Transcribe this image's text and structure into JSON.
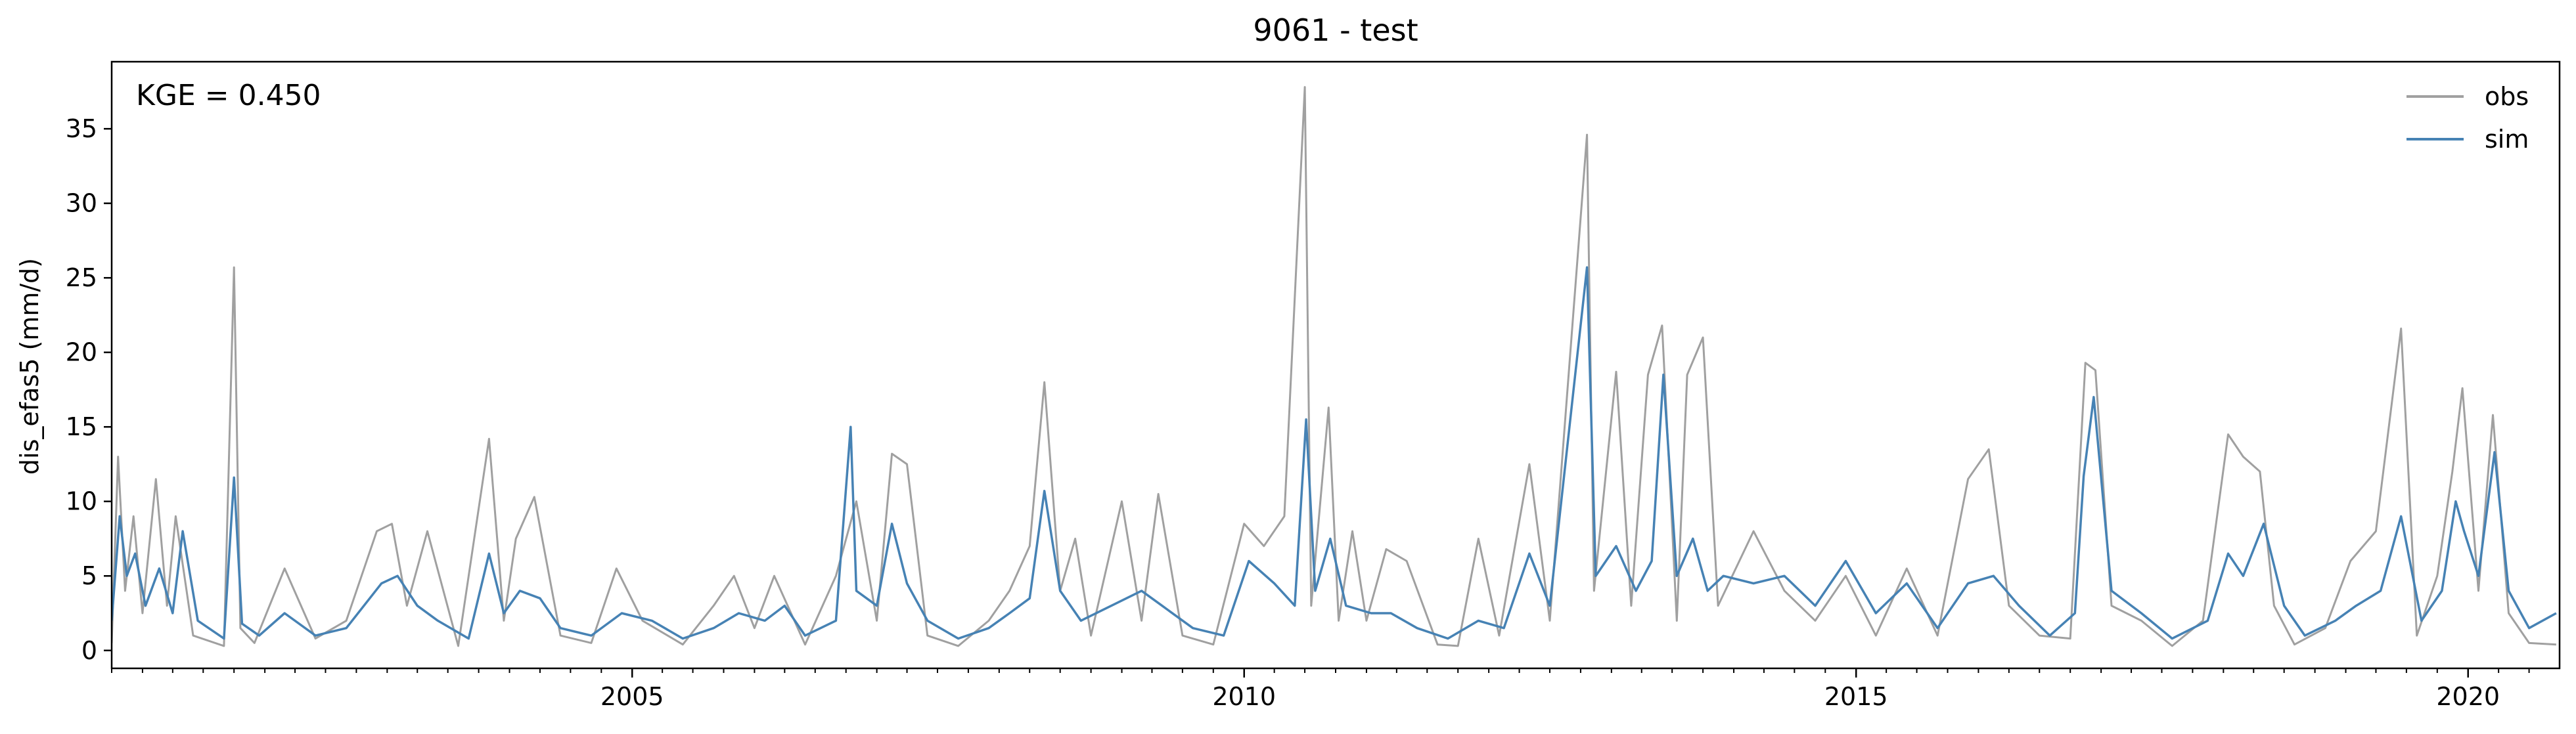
{
  "chart_data": {
    "type": "line",
    "title": "9061 - test",
    "xlabel": "",
    "ylabel": "dis_efas5 (mm/d)",
    "annotation": "KGE = 0.450",
    "xlim": [
      "2000-10-01",
      "2020-09-30"
    ],
    "ylim": [
      -1.2,
      39.5
    ],
    "grid": false,
    "legend_position": "top-right",
    "x_ticks": [
      {
        "date": "2005-01-01",
        "label": "2005"
      },
      {
        "date": "2010-01-01",
        "label": "2010"
      },
      {
        "date": "2015-01-01",
        "label": "2015"
      },
      {
        "date": "2020-01-01",
        "label": "2020"
      }
    ],
    "y_ticks": [
      {
        "value": 0,
        "label": "0"
      },
      {
        "value": 5,
        "label": "5"
      },
      {
        "value": 10,
        "label": "10"
      },
      {
        "value": 15,
        "label": "15"
      },
      {
        "value": 20,
        "label": "20"
      },
      {
        "value": 25,
        "label": "25"
      },
      {
        "value": 30,
        "label": "30"
      },
      {
        "value": 35,
        "label": "35"
      }
    ],
    "series": [
      {
        "name": "obs",
        "color": "#a0a0a0",
        "points": [
          [
            "2000-10-01",
            0.5
          ],
          [
            "2000-10-20",
            13.0
          ],
          [
            "2000-11-10",
            4.0
          ],
          [
            "2000-12-05",
            9.0
          ],
          [
            "2001-01-01",
            2.5
          ],
          [
            "2001-02-10",
            11.5
          ],
          [
            "2001-03-15",
            3.0
          ],
          [
            "2001-04-10",
            9.0
          ],
          [
            "2001-06-01",
            1.0
          ],
          [
            "2001-09-01",
            0.3
          ],
          [
            "2001-10-01",
            25.7
          ],
          [
            "2001-10-20",
            1.5
          ],
          [
            "2001-12-01",
            0.5
          ],
          [
            "2002-03-01",
            5.5
          ],
          [
            "2002-06-01",
            0.8
          ],
          [
            "2002-09-01",
            2.0
          ],
          [
            "2002-12-01",
            8.0
          ],
          [
            "2003-01-15",
            8.5
          ],
          [
            "2003-03-01",
            3.0
          ],
          [
            "2003-05-01",
            8.0
          ],
          [
            "2003-08-01",
            0.3
          ],
          [
            "2003-11-01",
            14.2
          ],
          [
            "2003-12-15",
            2.0
          ],
          [
            "2004-01-20",
            7.5
          ],
          [
            "2004-03-15",
            10.3
          ],
          [
            "2004-06-01",
            1.0
          ],
          [
            "2004-09-01",
            0.5
          ],
          [
            "2004-11-15",
            5.5
          ],
          [
            "2005-02-01",
            2.0
          ],
          [
            "2005-06-01",
            0.4
          ],
          [
            "2005-09-01",
            3.0
          ],
          [
            "2005-11-01",
            5.0
          ],
          [
            "2006-01-01",
            1.5
          ],
          [
            "2006-03-01",
            5.0
          ],
          [
            "2006-06-01",
            0.4
          ],
          [
            "2006-09-01",
            5.0
          ],
          [
            "2006-11-01",
            10.0
          ],
          [
            "2007-01-01",
            2.0
          ],
          [
            "2007-02-15",
            13.2
          ],
          [
            "2007-04-01",
            12.5
          ],
          [
            "2007-06-01",
            1.0
          ],
          [
            "2007-09-01",
            0.3
          ],
          [
            "2007-12-01",
            2.0
          ],
          [
            "2008-02-01",
            4.0
          ],
          [
            "2008-04-01",
            7.0
          ],
          [
            "2008-05-15",
            18.0
          ],
          [
            "2008-07-01",
            4.0
          ],
          [
            "2008-08-15",
            7.5
          ],
          [
            "2008-10-01",
            1.0
          ],
          [
            "2009-01-01",
            10.0
          ],
          [
            "2009-03-01",
            2.0
          ],
          [
            "2009-04-20",
            10.5
          ],
          [
            "2009-07-01",
            1.0
          ],
          [
            "2009-10-01",
            0.4
          ],
          [
            "2010-01-01",
            8.5
          ],
          [
            "2010-03-01",
            7.0
          ],
          [
            "2010-05-01",
            9.0
          ],
          [
            "2010-07-01",
            37.8
          ],
          [
            "2010-07-20",
            3.0
          ],
          [
            "2010-09-10",
            16.3
          ],
          [
            "2010-10-10",
            2.0
          ],
          [
            "2010-11-20",
            8.0
          ],
          [
            "2011-01-01",
            2.0
          ],
          [
            "2011-03-01",
            6.8
          ],
          [
            "2011-05-01",
            6.0
          ],
          [
            "2011-08-01",
            0.4
          ],
          [
            "2011-10-01",
            0.3
          ],
          [
            "2011-12-01",
            7.5
          ],
          [
            "2012-02-01",
            1.0
          ],
          [
            "2012-05-01",
            12.5
          ],
          [
            "2012-07-01",
            2.0
          ],
          [
            "2012-10-20",
            34.6
          ],
          [
            "2012-11-10",
            4.0
          ],
          [
            "2013-01-15",
            18.7
          ],
          [
            "2013-03-01",
            3.0
          ],
          [
            "2013-04-20",
            18.5
          ],
          [
            "2013-06-01",
            21.8
          ],
          [
            "2013-07-15",
            2.0
          ],
          [
            "2013-08-15",
            18.5
          ],
          [
            "2013-10-01",
            21.0
          ],
          [
            "2013-11-15",
            3.0
          ],
          [
            "2014-03-01",
            8.0
          ],
          [
            "2014-06-01",
            4.0
          ],
          [
            "2014-09-01",
            2.0
          ],
          [
            "2014-12-01",
            5.0
          ],
          [
            "2015-03-01",
            1.0
          ],
          [
            "2015-06-01",
            5.5
          ],
          [
            "2015-09-01",
            1.0
          ],
          [
            "2015-12-01",
            11.5
          ],
          [
            "2016-02-01",
            13.5
          ],
          [
            "2016-04-01",
            3.0
          ],
          [
            "2016-07-01",
            1.0
          ],
          [
            "2016-10-01",
            0.8
          ],
          [
            "2016-11-15",
            19.3
          ],
          [
            "2016-12-15",
            18.8
          ],
          [
            "2017-02-01",
            3.0
          ],
          [
            "2017-05-01",
            2.0
          ],
          [
            "2017-08-01",
            0.3
          ],
          [
            "2017-11-01",
            2.0
          ],
          [
            "2018-01-15",
            14.5
          ],
          [
            "2018-03-01",
            13.0
          ],
          [
            "2018-04-20",
            12.0
          ],
          [
            "2018-06-01",
            3.0
          ],
          [
            "2018-08-01",
            0.4
          ],
          [
            "2018-11-01",
            1.5
          ],
          [
            "2019-01-15",
            6.0
          ],
          [
            "2019-04-01",
            8.0
          ],
          [
            "2019-06-15",
            21.6
          ],
          [
            "2019-08-01",
            1.0
          ],
          [
            "2019-10-01",
            5.0
          ],
          [
            "2019-11-15",
            12.0
          ],
          [
            "2019-12-15",
            17.6
          ],
          [
            "2020-02-01",
            4.0
          ],
          [
            "2020-03-15",
            15.8
          ],
          [
            "2020-05-01",
            2.5
          ],
          [
            "2020-07-01",
            0.5
          ],
          [
            "2020-09-20",
            0.4
          ]
        ]
      },
      {
        "name": "sim",
        "color": "#4682b4",
        "points": [
          [
            "2000-10-01",
            2.0
          ],
          [
            "2000-10-25",
            9.0
          ],
          [
            "2000-11-15",
            5.0
          ],
          [
            "2000-12-10",
            6.5
          ],
          [
            "2001-01-10",
            3.0
          ],
          [
            "2001-02-20",
            5.5
          ],
          [
            "2001-04-01",
            2.5
          ],
          [
            "2001-05-01",
            8.0
          ],
          [
            "2001-06-15",
            2.0
          ],
          [
            "2001-09-01",
            0.8
          ],
          [
            "2001-10-01",
            11.6
          ],
          [
            "2001-10-25",
            1.8
          ],
          [
            "2001-12-15",
            1.0
          ],
          [
            "2002-03-01",
            2.5
          ],
          [
            "2002-06-01",
            1.0
          ],
          [
            "2002-09-01",
            1.5
          ],
          [
            "2002-12-15",
            4.5
          ],
          [
            "2003-02-01",
            5.0
          ],
          [
            "2003-04-01",
            3.0
          ],
          [
            "2003-06-01",
            2.0
          ],
          [
            "2003-09-01",
            0.8
          ],
          [
            "2003-11-01",
            6.5
          ],
          [
            "2003-12-15",
            2.5
          ],
          [
            "2004-02-01",
            4.0
          ],
          [
            "2004-04-01",
            3.5
          ],
          [
            "2004-06-01",
            1.5
          ],
          [
            "2004-09-01",
            1.0
          ],
          [
            "2004-12-01",
            2.5
          ],
          [
            "2005-03-01",
            2.0
          ],
          [
            "2005-06-01",
            0.8
          ],
          [
            "2005-09-01",
            1.5
          ],
          [
            "2005-11-15",
            2.5
          ],
          [
            "2006-02-01",
            2.0
          ],
          [
            "2006-04-01",
            3.0
          ],
          [
            "2006-06-01",
            1.0
          ],
          [
            "2006-09-01",
            2.0
          ],
          [
            "2006-10-15",
            15.0
          ],
          [
            "2006-11-01",
            4.0
          ],
          [
            "2007-01-01",
            3.0
          ],
          [
            "2007-02-15",
            8.5
          ],
          [
            "2007-04-01",
            4.5
          ],
          [
            "2007-06-01",
            2.0
          ],
          [
            "2007-09-01",
            0.8
          ],
          [
            "2007-12-01",
            1.5
          ],
          [
            "2008-02-01",
            2.5
          ],
          [
            "2008-04-01",
            3.5
          ],
          [
            "2008-05-15",
            10.7
          ],
          [
            "2008-07-01",
            4.0
          ],
          [
            "2008-09-01",
            2.0
          ],
          [
            "2008-12-01",
            3.0
          ],
          [
            "2009-03-01",
            4.0
          ],
          [
            "2009-05-01",
            3.0
          ],
          [
            "2009-08-01",
            1.5
          ],
          [
            "2009-11-01",
            1.0
          ],
          [
            "2010-01-15",
            6.0
          ],
          [
            "2010-04-01",
            4.5
          ],
          [
            "2010-06-01",
            3.0
          ],
          [
            "2010-07-05",
            15.5
          ],
          [
            "2010-08-01",
            4.0
          ],
          [
            "2010-09-15",
            7.5
          ],
          [
            "2010-11-01",
            3.0
          ],
          [
            "2011-01-15",
            2.5
          ],
          [
            "2011-03-15",
            2.5
          ],
          [
            "2011-06-01",
            1.5
          ],
          [
            "2011-09-01",
            0.8
          ],
          [
            "2011-12-01",
            2.0
          ],
          [
            "2012-02-15",
            1.5
          ],
          [
            "2012-05-01",
            6.5
          ],
          [
            "2012-07-01",
            3.0
          ],
          [
            "2012-10-20",
            25.7
          ],
          [
            "2012-11-15",
            5.0
          ],
          [
            "2013-01-15",
            7.0
          ],
          [
            "2013-03-15",
            4.0
          ],
          [
            "2013-05-01",
            6.0
          ],
          [
            "2013-06-05",
            18.5
          ],
          [
            "2013-07-15",
            5.0
          ],
          [
            "2013-09-01",
            7.5
          ],
          [
            "2013-10-15",
            4.0
          ],
          [
            "2013-12-01",
            5.0
          ],
          [
            "2014-03-01",
            4.5
          ],
          [
            "2014-06-01",
            5.0
          ],
          [
            "2014-09-01",
            3.0
          ],
          [
            "2014-12-01",
            6.0
          ],
          [
            "2015-03-01",
            2.5
          ],
          [
            "2015-06-01",
            4.5
          ],
          [
            "2015-09-01",
            1.5
          ],
          [
            "2015-12-01",
            4.5
          ],
          [
            "2016-02-15",
            5.0
          ],
          [
            "2016-05-01",
            3.0
          ],
          [
            "2016-08-01",
            1.0
          ],
          [
            "2016-10-15",
            2.5
          ],
          [
            "2016-11-10",
            11.7
          ],
          [
            "2016-12-10",
            17.0
          ],
          [
            "2017-02-01",
            4.0
          ],
          [
            "2017-05-01",
            2.5
          ],
          [
            "2017-08-01",
            0.8
          ],
          [
            "2017-11-15",
            2.0
          ],
          [
            "2018-01-15",
            6.5
          ],
          [
            "2018-03-01",
            5.0
          ],
          [
            "2018-05-01",
            8.5
          ],
          [
            "2018-07-01",
            3.0
          ],
          [
            "2018-09-01",
            1.0
          ],
          [
            "2018-12-01",
            2.0
          ],
          [
            "2019-02-01",
            3.0
          ],
          [
            "2019-04-15",
            4.0
          ],
          [
            "2019-06-15",
            9.0
          ],
          [
            "2019-08-15",
            2.0
          ],
          [
            "2019-10-15",
            4.0
          ],
          [
            "2019-11-25",
            10.0
          ],
          [
            "2019-12-20",
            8.0
          ],
          [
            "2020-02-01",
            5.0
          ],
          [
            "2020-03-20",
            13.3
          ],
          [
            "2020-05-01",
            4.0
          ],
          [
            "2020-07-01",
            1.5
          ],
          [
            "2020-09-20",
            2.5
          ]
        ]
      }
    ]
  }
}
